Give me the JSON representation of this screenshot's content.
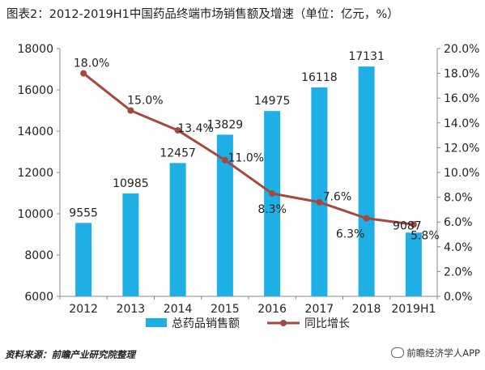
{
  "title": "图表2：2012-2019H1中国药品终端市场销售额及增速（单位：亿元，%）",
  "source": "资料来源：前瞻产业研究院整理",
  "watermark": "前瞻经济学人APP",
  "chart_data": {
    "type": "bar+line",
    "categories": [
      "2012",
      "2013",
      "2014",
      "2015",
      "2016",
      "2017",
      "2018",
      "2019H1"
    ],
    "series": [
      {
        "name": "总药品销售额",
        "type": "bar",
        "axis": "left",
        "values": [
          9555,
          10985,
          12457,
          13829,
          14975,
          16118,
          17131,
          9087
        ],
        "labels": [
          "9555",
          "10985",
          "12457",
          "13829",
          "14975",
          "16118",
          "17131",
          "9087"
        ],
        "color": "#1eb0e4"
      },
      {
        "name": "同比增长",
        "type": "line",
        "axis": "right",
        "values": [
          18.0,
          15.0,
          13.4,
          11.0,
          8.3,
          7.6,
          6.3,
          5.8
        ],
        "labels": [
          "18.0%",
          "15.0%",
          "13.4%",
          "11.0%",
          "8.3%",
          "7.6%",
          "6.3%",
          "5.8%"
        ],
        "color": "#a4493f"
      }
    ],
    "y_left": {
      "min": 6000,
      "max": 18000,
      "ticks": [
        "6000",
        "8000",
        "10000",
        "12000",
        "14000",
        "16000",
        "18000"
      ]
    },
    "y_right": {
      "min": 0,
      "max": 20,
      "ticks": [
        "0.0%",
        "2.0%",
        "4.0%",
        "6.0%",
        "8.0%",
        "10.0%",
        "12.0%",
        "14.0%",
        "16.0%",
        "18.0%",
        "20.0%"
      ]
    },
    "grid": false,
    "legend": "bottom"
  }
}
